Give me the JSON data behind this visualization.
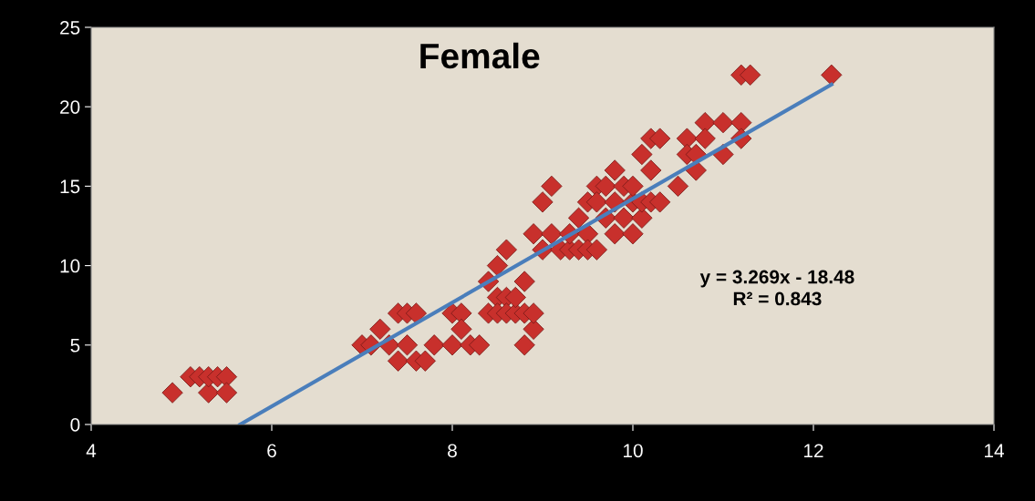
{
  "chart_data": {
    "type": "scatter",
    "title": "Female",
    "series": [
      {
        "color": "#c8302c",
        "marker": "diamond",
        "x": [
          4.9,
          5.1,
          5.2,
          5.3,
          5.3,
          5.4,
          5.5,
          5.5,
          7.0,
          7.1,
          7.2,
          7.3,
          7.4,
          7.4,
          7.5,
          7.5,
          7.6,
          7.6,
          7.7,
          7.8,
          8.0,
          8.0,
          8.1,
          8.1,
          8.2,
          8.3,
          8.4,
          8.4,
          8.5,
          8.5,
          8.5,
          8.6,
          8.6,
          8.6,
          8.7,
          8.7,
          8.8,
          8.8,
          8.8,
          8.9,
          8.9,
          8.9,
          9.0,
          9.0,
          9.1,
          9.1,
          9.2,
          9.3,
          9.3,
          9.4,
          9.4,
          9.5,
          9.5,
          9.5,
          9.6,
          9.6,
          9.6,
          9.7,
          9.7,
          9.8,
          9.8,
          9.8,
          9.9,
          9.9,
          10.0,
          10.0,
          10.0,
          10.1,
          10.1,
          10.1,
          10.2,
          10.2,
          10.2,
          10.3,
          10.3,
          10.5,
          10.6,
          10.6,
          10.7,
          10.7,
          10.8,
          10.8,
          11.0,
          11.0,
          11.2,
          11.2,
          11.3,
          11.2,
          12.2
        ],
        "values": [
          2,
          3,
          3,
          2,
          3,
          3,
          3,
          2,
          5,
          5,
          6,
          5,
          4,
          7,
          7,
          5,
          4,
          7,
          4,
          5,
          7,
          5,
          7,
          6,
          5,
          5,
          9,
          7,
          10,
          8,
          7,
          11,
          8,
          7,
          7,
          8,
          9,
          5,
          7,
          6,
          7,
          12,
          14,
          11,
          15,
          12,
          11,
          11,
          12,
          13,
          11,
          14,
          12,
          11,
          15,
          14,
          11,
          15,
          13,
          12,
          16,
          14,
          15,
          13,
          12,
          14,
          15,
          13,
          17,
          14,
          16,
          18,
          14,
          18,
          14,
          15,
          18,
          17,
          16,
          17,
          19,
          18,
          19,
          17,
          19,
          22,
          22,
          18,
          22
        ]
      },
      {
        "type": "line",
        "color": "#4a7ebb",
        "marker": "none",
        "line_style": "solid",
        "x": [
          5.65,
          12.2
        ],
        "values": [
          0,
          21.4
        ]
      }
    ],
    "xlim": [
      4,
      14
    ],
    "xticks": [
      4,
      6,
      8,
      10,
      12,
      14
    ],
    "ylim": [
      0,
      25
    ],
    "yticks": [
      0,
      5,
      10,
      15,
      20,
      25
    ],
    "grid": false,
    "legend": false,
    "annotations": [
      "y = 3.269x - 18.48\nR² = 0.843"
    ]
  }
}
